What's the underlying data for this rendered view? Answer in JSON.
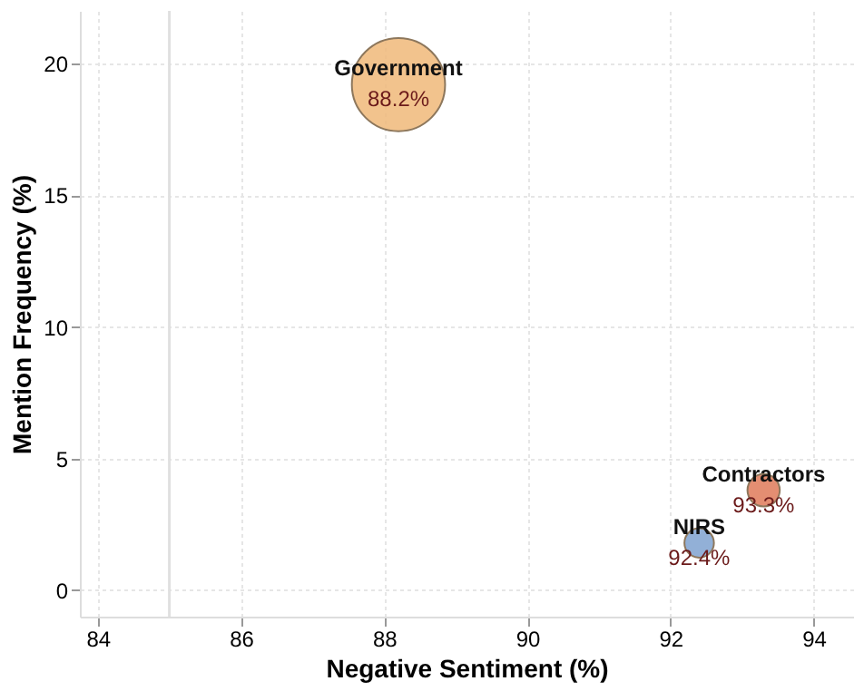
{
  "chart_data": {
    "type": "bubble",
    "xlabel": "Negative Sentiment (%)",
    "ylabel": "Mention Frequency (%)",
    "xlim": [
      83.75,
      94.55
    ],
    "xticks": [
      84,
      86,
      88,
      90,
      92,
      94
    ],
    "ylim": [
      -1,
      22
    ],
    "yticks": [
      0,
      5,
      10,
      15,
      20
    ],
    "grid": true,
    "series": [
      {
        "name": "Government",
        "color": "#f0b97a",
        "x": [
          88.2
        ],
        "values": [
          19.2
        ],
        "sizes": [
          1
        ]
      },
      {
        "name": "Contractors",
        "color": "#e07b5a",
        "x": [
          93.3
        ],
        "values": [
          3.8
        ],
        "sizes": [
          0.12
        ]
      },
      {
        "name": "NIRS",
        "color": "#7fa3d1",
        "x": [
          92.4
        ],
        "values": [
          1.8
        ],
        "sizes": [
          0.1
        ]
      }
    ],
    "annotations": [
      {
        "text": "88.2%",
        "x": 88.2,
        "y": 19.2
      },
      {
        "text": "93.3%",
        "x": 93.3,
        "y": 3.8
      },
      {
        "text": "92.4%",
        "x": 92.4,
        "y": 1.8
      }
    ],
    "ref_lines": [
      {
        "axis": "x",
        "value": 85,
        "color": "#e0e0e0"
      }
    ]
  }
}
